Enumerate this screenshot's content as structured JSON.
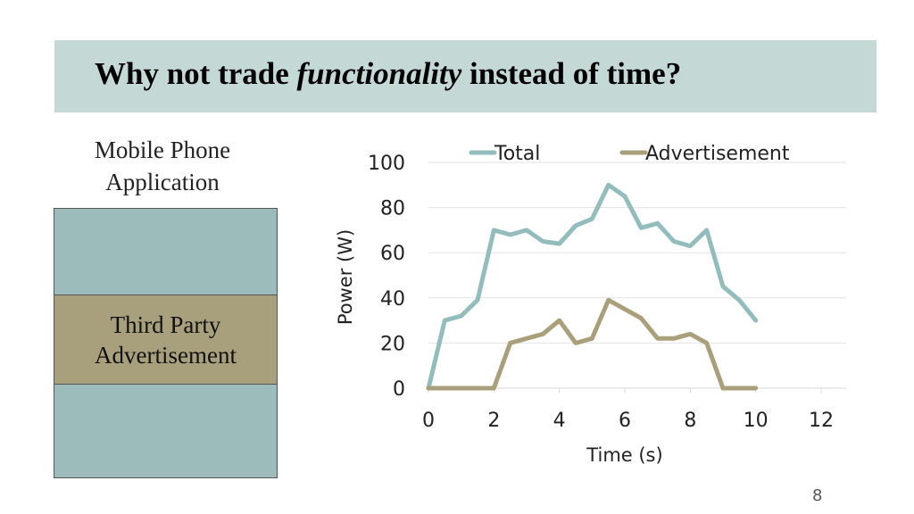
{
  "slide": {
    "title_before": "Why not trade ",
    "title_emphasis": "functionality",
    "title_after": " instead of time?",
    "phone_caption": "Mobile Phone Application",
    "ad_label_line1": "Third Party",
    "ad_label_line2": "Advertisement",
    "page_number": "8"
  },
  "colors": {
    "title_band": "#c4d8d6",
    "phone_body": "#9bbcbb",
    "ad_band": "#a8a07c",
    "total_series": "#93bcbc",
    "advertisement_series": "#a9a07b"
  },
  "chart_data": {
    "type": "line",
    "title": "",
    "xlabel": "Time (s)",
    "ylabel": "Power (W)",
    "xlim": [
      0,
      12
    ],
    "ylim": [
      0,
      100
    ],
    "xticks": [
      0,
      2,
      4,
      6,
      8,
      10,
      12
    ],
    "yticks": [
      0,
      20,
      40,
      60,
      80,
      100
    ],
    "grid": "horizontal",
    "legend": "top",
    "series": [
      {
        "name": "Total",
        "color": "#93bcbc",
        "x": [
          0,
          0.5,
          1,
          1.5,
          2,
          2.5,
          3,
          3.5,
          4,
          4.5,
          5,
          5.5,
          6,
          6.5,
          7,
          7.5,
          8,
          8.5,
          9,
          9.5,
          10
        ],
        "y": [
          0,
          30,
          32,
          39,
          70,
          68,
          70,
          65,
          64,
          72,
          75,
          90,
          85,
          71,
          73,
          65,
          63,
          70,
          45,
          39,
          30
        ]
      },
      {
        "name": "Advertisement",
        "color": "#a9a07b",
        "x": [
          0,
          0.5,
          1,
          1.5,
          2,
          2.5,
          3,
          3.5,
          4,
          4.5,
          5,
          5.5,
          6,
          6.5,
          7,
          7.5,
          8,
          8.5,
          9,
          9.5,
          10
        ],
        "y": [
          0,
          0,
          0,
          0,
          0,
          20,
          22,
          24,
          30,
          20,
          22,
          39,
          35,
          31,
          22,
          22,
          24,
          20,
          0,
          0,
          0
        ]
      }
    ]
  }
}
